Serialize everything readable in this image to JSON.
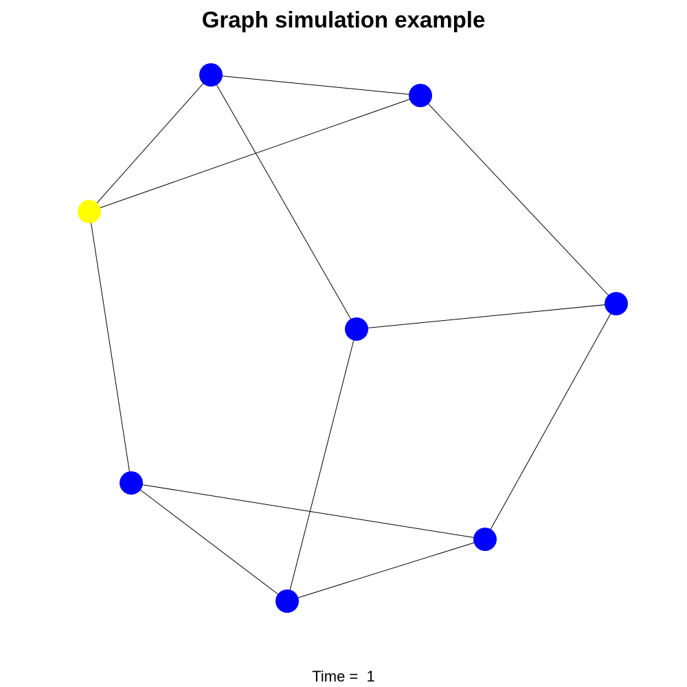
{
  "title": "Graph simulation example",
  "time_label": "Time =  1",
  "colors": {
    "default_node": "#0000ff",
    "active_node": "#ffff00",
    "edge": "#000000",
    "background": "#ffffff"
  },
  "graph": {
    "nodes": [
      {
        "id": "n1",
        "state": "default"
      },
      {
        "id": "n2",
        "state": "default"
      },
      {
        "id": "n3",
        "state": "active"
      },
      {
        "id": "n4",
        "state": "default"
      },
      {
        "id": "n5",
        "state": "default"
      },
      {
        "id": "n6",
        "state": "default"
      },
      {
        "id": "n7",
        "state": "default"
      },
      {
        "id": "n8",
        "state": "default"
      }
    ],
    "edges": [
      [
        "n1",
        "n2"
      ],
      [
        "n1",
        "n3"
      ],
      [
        "n1",
        "n4"
      ],
      [
        "n2",
        "n3"
      ],
      [
        "n2",
        "n5"
      ],
      [
        "n3",
        "n6"
      ],
      [
        "n4",
        "n5"
      ],
      [
        "n4",
        "n8"
      ],
      [
        "n5",
        "n7"
      ],
      [
        "n6",
        "n7"
      ],
      [
        "n6",
        "n8"
      ],
      [
        "n7",
        "n8"
      ]
    ]
  }
}
